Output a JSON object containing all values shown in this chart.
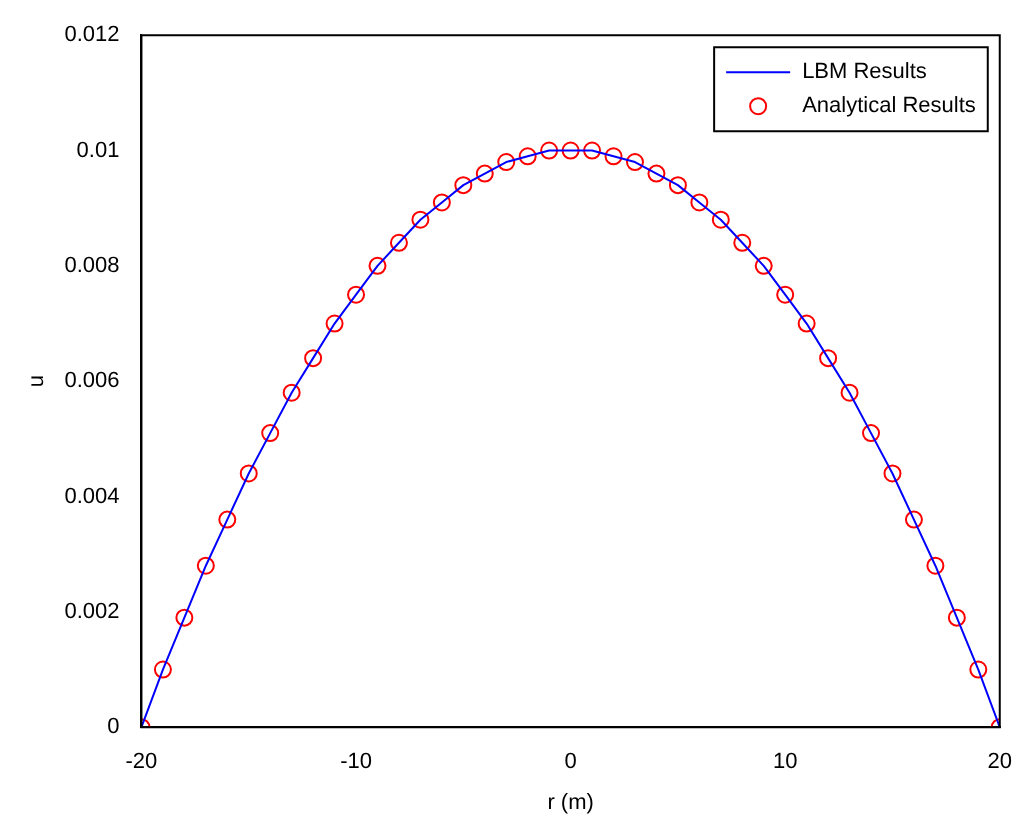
{
  "chart_data": {
    "type": "line",
    "xlabel": "r (m)",
    "ylabel": "u",
    "x": [
      -20,
      -19,
      -18,
      -17,
      -16,
      -15,
      -14,
      -13,
      -12,
      -11,
      -10,
      -9,
      -8,
      -7,
      -6,
      -5,
      -4,
      -3,
      -2,
      -1,
      0,
      1,
      2,
      3,
      4,
      5,
      6,
      7,
      8,
      9,
      10,
      11,
      12,
      13,
      14,
      15,
      16,
      17,
      18,
      19,
      20
    ],
    "series": [
      {
        "name": "LBM Results",
        "type": "line",
        "color": "#0000ff",
        "line_style": "solid",
        "marker": "none",
        "values": [
          0,
          0.001,
          0.0019,
          0.0028,
          0.0036,
          0.0044,
          0.0051,
          0.0058,
          0.0064,
          0.007,
          0.0075,
          0.008,
          0.0084,
          0.0088,
          0.0091,
          0.0094,
          0.0096,
          0.0098,
          0.0099,
          0.01,
          0.01,
          0.01,
          0.0099,
          0.0098,
          0.0096,
          0.0094,
          0.0091,
          0.0088,
          0.0084,
          0.008,
          0.0075,
          0.007,
          0.0064,
          0.0058,
          0.0051,
          0.0044,
          0.0036,
          0.0028,
          0.0019,
          0.001,
          0
        ]
      },
      {
        "name": "Analytical Results",
        "type": "scatter",
        "color": "#ff0000",
        "marker": "circle",
        "values": [
          0,
          0.001,
          0.0019,
          0.0028,
          0.0036,
          0.0044,
          0.0051,
          0.0058,
          0.0064,
          0.007,
          0.0075,
          0.008,
          0.0084,
          0.0088,
          0.0091,
          0.0094,
          0.0096,
          0.0098,
          0.0099,
          0.01,
          0.01,
          0.01,
          0.0099,
          0.0098,
          0.0096,
          0.0094,
          0.0091,
          0.0088,
          0.0084,
          0.008,
          0.0075,
          0.007,
          0.0064,
          0.0058,
          0.0051,
          0.0044,
          0.0036,
          0.0028,
          0.0019,
          0.001,
          0
        ]
      }
    ],
    "xlim": [
      -20,
      20
    ],
    "xticks": [
      -20,
      -10,
      0,
      10,
      20
    ],
    "ylim": [
      0,
      0.012
    ],
    "yticks": [
      0,
      0.002,
      0.004,
      0.006,
      0.008,
      0.01,
      0.012
    ],
    "grid": false,
    "legend": "top right"
  }
}
